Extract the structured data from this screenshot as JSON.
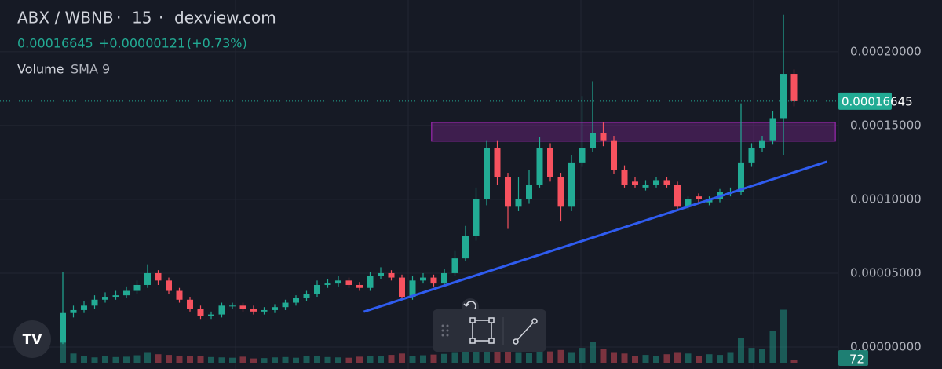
{
  "chart_data": {
    "type": "candlestick",
    "symbol": "ABX / WBNB",
    "interval": "15",
    "source": "dexview.com",
    "change": "+0.00000121",
    "change_percent": "(+0.73%)",
    "volume_title": "Volume",
    "volume_indicator": "SMA 9",
    "open": [
      3e-06,
      2.3e-05,
      2.5e-05,
      2.8e-05,
      3.2e-05,
      3.4e-05,
      3.5e-05,
      3.8e-05,
      4.2e-05,
      5e-05,
      4.5e-05,
      3.8e-05,
      3.2e-05,
      2.6e-05,
      2.1e-05,
      2.2e-05,
      2.8e-05,
      2.8e-05,
      2.6e-05,
      2.4e-05,
      2.5e-05,
      2.7e-05,
      3e-05,
      3.3e-05,
      3.6e-05,
      4.2e-05,
      4.3e-05,
      4.5e-05,
      4.2e-05,
      4e-05,
      4.8e-05,
      5e-05,
      4.7e-05,
      3.4e-05,
      4.5e-05,
      4.7e-05,
      4.3e-05,
      5e-05,
      6e-05,
      7.5e-05,
      0.0001,
      0.000135,
      0.000115,
      9.5e-05,
      0.0001,
      0.00011,
      0.000135,
      0.000115,
      9.5e-05,
      0.000125,
      0.000135,
      0.000145,
      0.00014,
      0.00012,
      0.000112,
      0.000108,
      0.00011,
      0.000113,
      0.00011,
      9.5e-05,
      0.000102,
      9.8e-05,
      0.0001,
      0.000105,
      0.000105,
      0.000125,
      0.000135,
      0.00014,
      0.000155,
      0.000185
    ],
    "high": [
      5.1e-05,
      2.8e-05,
      3.1e-05,
      3.5e-05,
      3.7e-05,
      3.8e-05,
      4.1e-05,
      4.5e-05,
      5.6e-05,
      5.2e-05,
      4.7e-05,
      4e-05,
      3.4e-05,
      2.8e-05,
      2.4e-05,
      3e-05,
      3e-05,
      3e-05,
      2.8e-05,
      2.7e-05,
      2.9e-05,
      3.2e-05,
      3.5e-05,
      3.8e-05,
      4.5e-05,
      4.6e-05,
      4.8e-05,
      4.7e-05,
      4.4e-05,
      5.1e-05,
      5.4e-05,
      5.2e-05,
      4.9e-05,
      4.8e-05,
      5e-05,
      4.9e-05,
      5.3e-05,
      6.5e-05,
      8.2e-05,
      0.000108,
      0.00014,
      0.00014,
      0.000118,
      0.000115,
      0.00012,
      0.000142,
      0.000138,
      0.000118,
      0.00013,
      0.00017,
      0.00018,
      0.000152,
      0.000143,
      0.000123,
      0.000115,
      0.000113,
      0.000115,
      0.000115,
      0.000112,
      0.000102,
      0.000104,
      0.000102,
      0.000107,
      0.000108,
      0.000165,
      0.000138,
      0.000143,
      0.00016,
      0.000225,
      0.000188
    ],
    "low": [
      2e-06,
      2e-05,
      2.3e-05,
      2.6e-05,
      3e-05,
      3.2e-05,
      3.3e-05,
      3.6e-05,
      4e-05,
      4.2e-05,
      3.6e-05,
      3e-05,
      2.4e-05,
      1.9e-05,
      1.9e-05,
      2e-05,
      2.6e-05,
      2.4e-05,
      2.2e-05,
      2.2e-05,
      2.3e-05,
      2.5e-05,
      2.8e-05,
      3.1e-05,
      3.4e-05,
      4e-05,
      4.1e-05,
      4e-05,
      3.8e-05,
      3.8e-05,
      4.6e-05,
      4.5e-05,
      3.2e-05,
      3.2e-05,
      4.3e-05,
      4.1e-05,
      4.1e-05,
      4.8e-05,
      5.8e-05,
      7.2e-05,
      9.6e-05,
      0.00011,
      8e-05,
      9.2e-05,
      9.7e-05,
      0.000108,
      0.000112,
      8.5e-05,
      9.2e-05,
      0.000122,
      0.000132,
      0.000136,
      0.000117,
      0.000108,
      0.000108,
      0.000106,
      0.000108,
      0.000108,
      9.2e-05,
      9.3e-05,
      9.8e-05,
      9.6e-05,
      9.8e-05,
      0.000102,
      0.000103,
      0.000122,
      0.000132,
      0.000137,
      0.00013,
      0.000163
    ],
    "close": [
      2.3e-05,
      2.5e-05,
      2.8e-05,
      3.2e-05,
      3.4e-05,
      3.5e-05,
      3.8e-05,
      4.2e-05,
      5e-05,
      4.5e-05,
      3.8e-05,
      3.2e-05,
      2.6e-05,
      2.1e-05,
      2.2e-05,
      2.8e-05,
      2.8e-05,
      2.6e-05,
      2.4e-05,
      2.5e-05,
      2.7e-05,
      3e-05,
      3.3e-05,
      3.6e-05,
      4.2e-05,
      4.3e-05,
      4.5e-05,
      4.2e-05,
      4e-05,
      4.8e-05,
      5e-05,
      4.7e-05,
      3.4e-05,
      4.5e-05,
      4.7e-05,
      4.3e-05,
      5e-05,
      6e-05,
      7.5e-05,
      0.0001,
      0.000135,
      0.000115,
      9.5e-05,
      0.0001,
      0.00011,
      0.000135,
      0.000115,
      9.5e-05,
      0.000125,
      0.000135,
      0.000145,
      0.00014,
      0.00012,
      0.00011,
      0.00011,
      0.00011,
      0.000113,
      0.00011,
      9.5e-05,
      0.0001,
      0.0001,
      0.0001,
      0.000105,
      0.000105,
      0.000125,
      0.000135,
      0.00014,
      0.000155,
      0.000185,
      0.00016645
    ],
    "volume": [
      1200,
      260,
      180,
      150,
      200,
      160,
      170,
      210,
      300,
      240,
      220,
      180,
      200,
      190,
      160,
      150,
      140,
      170,
      120,
      130,
      150,
      160,
      140,
      180,
      200,
      160,
      150,
      140,
      170,
      200,
      180,
      220,
      260,
      190,
      210,
      230,
      250,
      300,
      350,
      420,
      500,
      380,
      400,
      300,
      280,
      350,
      320,
      360,
      300,
      420,
      600,
      380,
      300,
      260,
      200,
      220,
      180,
      240,
      300,
      260,
      200,
      240,
      220,
      300,
      700,
      420,
      380,
      900,
      1500,
      72
    ],
    "volume_lim": [
      0,
      2000
    ],
    "ylim": [
      -1.49e-05,
      0.000235
    ],
    "yticks": [
      {
        "value": 0,
        "label": "0.00000000"
      },
      {
        "value": 5e-05,
        "label": "0.00005000"
      },
      {
        "value": 0.0001,
        "label": "0.00010000"
      },
      {
        "value": 0.00015,
        "label": "0.00015000"
      },
      {
        "value": 0.0002,
        "label": "0.00020000"
      }
    ],
    "zone": {
      "x": [
        34.8,
        72.9
      ],
      "y": [
        0.0001394,
        0.0001521
      ],
      "color": "#9c27b0"
    },
    "trendline": {
      "x": [
        28.4,
        72.1
      ],
      "y": [
        2.39e-05,
        0.0001255
      ],
      "color": "#2f5cf0"
    },
    "up_color": "#22ab94",
    "down_color": "#f7525f",
    "grid": true
  }
}
